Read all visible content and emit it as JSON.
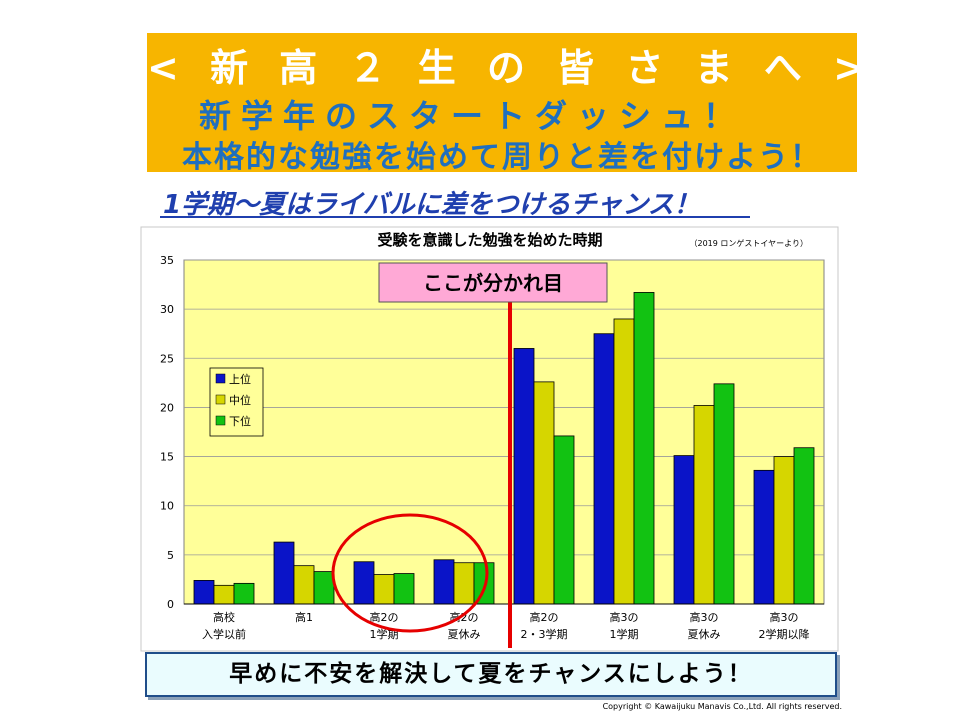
{
  "banner": {
    "line1": "< 新 高 ２ 生 の 皆 さ ま へ >",
    "line2": "新学年のスタートダッシュ！",
    "line3": "本格的な勉強を始めて周りと差を付けよう！"
  },
  "subheading": "1学期～夏はライバルに差をつけるチャンス！",
  "message": "早めに不安を解決して夏をチャンスにしよう！",
  "copyright": "Copyright © Kawaijuku Manavis Co.,Ltd. All rights reserved.",
  "chart_data": {
    "type": "bar",
    "title": "受験を意識した勉強を始めた時期",
    "source": "（2019 ロンゲストイヤーより）",
    "callout": "ここが分かれ目",
    "categories": [
      [
        "高校",
        "入学以前"
      ],
      [
        "高1"
      ],
      [
        "高2の",
        "1学期"
      ],
      [
        "高2の",
        "夏休み"
      ],
      [
        "高2の",
        "2・3学期"
      ],
      [
        "高3の",
        "1学期"
      ],
      [
        "高3の",
        "夏休み"
      ],
      [
        "高3の",
        "2学期以降"
      ]
    ],
    "series": [
      {
        "name": "上位",
        "color": "#0a14c8",
        "values": [
          2.4,
          6.3,
          4.3,
          4.5,
          26.0,
          27.5,
          15.1,
          13.6
        ]
      },
      {
        "name": "中位",
        "color": "#d6d600",
        "values": [
          1.9,
          3.9,
          3.0,
          4.2,
          22.6,
          29.0,
          20.2,
          15.0
        ]
      },
      {
        "name": "下位",
        "color": "#12c212",
        "values": [
          2.1,
          3.3,
          3.1,
          4.2,
          17.1,
          31.7,
          22.4,
          15.9
        ]
      }
    ],
    "ylim": [
      0,
      35
    ],
    "yticks": [
      0,
      5,
      10,
      15,
      20,
      25,
      30,
      35
    ],
    "grid": true,
    "legend": "left",
    "plot_background": "#ffff99",
    "divider_color": "#e60000",
    "highlight_category": "高2の1学期"
  }
}
